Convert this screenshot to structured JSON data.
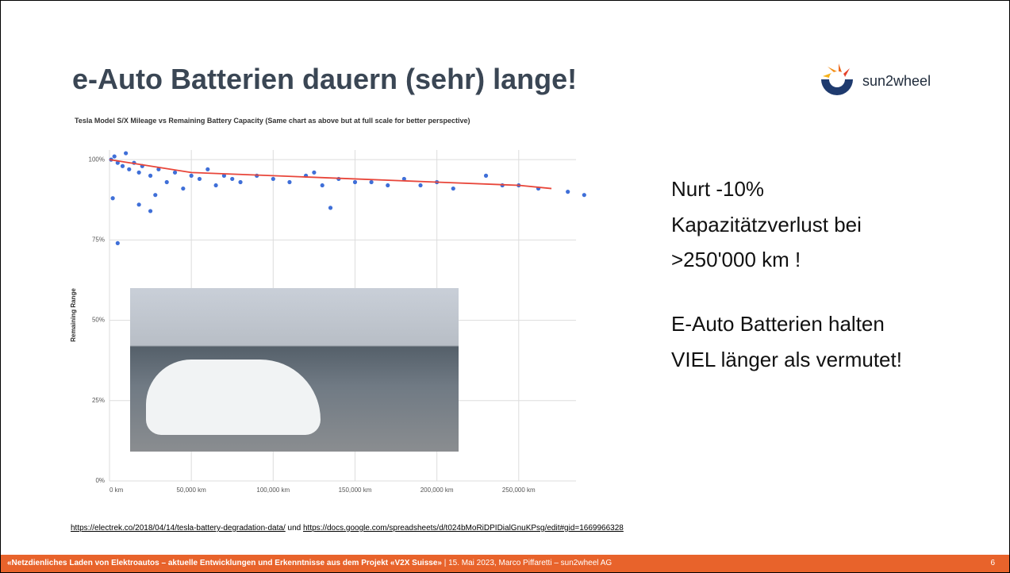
{
  "header": {
    "title": "e-Auto Batterien dauern (sehr) lange!",
    "logo_text": "sun2wheel"
  },
  "chart_data": {
    "type": "scatter",
    "title": "Tesla Model S/X Mileage vs Remaining Battery Capacity (Same chart as above but at full scale for better perspective)",
    "y_label": "Remaining Range",
    "xlim": [
      0,
      285000
    ],
    "ylim": [
      0,
      103
    ],
    "xticks": [
      {
        "value": 0,
        "label": "0 km"
      },
      {
        "value": 50000,
        "label": "50,000 km"
      },
      {
        "value": 100000,
        "label": "100,000 km"
      },
      {
        "value": 150000,
        "label": "150,000 km"
      },
      {
        "value": 200000,
        "label": "200,000 km"
      },
      {
        "value": 250000,
        "label": "250,000 km"
      }
    ],
    "yticks": [
      {
        "value": 0,
        "label": "0%"
      },
      {
        "value": 25,
        "label": "25%"
      },
      {
        "value": 50,
        "label": "50%"
      },
      {
        "value": 75,
        "label": "75%"
      },
      {
        "value": 100,
        "label": "100%"
      }
    ],
    "grid": true,
    "series": [
      {
        "type": "scatter",
        "color": "#3f6fd8",
        "x": [
          1000,
          3000,
          5000,
          8000,
          10000,
          12000,
          15000,
          18000,
          20000,
          25000,
          28000,
          30000,
          35000,
          40000,
          45000,
          50000,
          55000,
          60000,
          65000,
          70000,
          75000,
          80000,
          90000,
          100000,
          110000,
          120000,
          125000,
          130000,
          140000,
          150000,
          160000,
          170000,
          180000,
          190000,
          200000,
          210000,
          230000,
          240000,
          250000,
          262000,
          280000,
          290000,
          5000,
          2000,
          135000,
          18000,
          25000
        ],
        "y": [
          100,
          101,
          99,
          98,
          102,
          97,
          99,
          96,
          98,
          95,
          89,
          97,
          93,
          96,
          91,
          95,
          94,
          97,
          92,
          95,
          94,
          93,
          95,
          94,
          93,
          95,
          96,
          92,
          94,
          93,
          93,
          92,
          94,
          92,
          93,
          91,
          95,
          92,
          92,
          91,
          90,
          89,
          74,
          88,
          85,
          86,
          84
        ]
      },
      {
        "type": "line",
        "color": "#e8463a",
        "x": [
          0,
          50000,
          100000,
          150000,
          200000,
          250000,
          270000
        ],
        "y": [
          100,
          96,
          95,
          94,
          93,
          92,
          91
        ]
      }
    ]
  },
  "text": {
    "lines": [
      "Nurt -10%",
      "Kapazitätzverlust bei",
      ">250'000 km !",
      "E-Auto Batterien halten",
      "VIEL länger als vermutet!"
    ]
  },
  "sources": {
    "link1": "https://electrek.co/2018/04/14/tesla-battery-degradation-data/",
    "joiner": "und",
    "link2": "https://docs.google.com/spreadsheets/d/t024bMoRiDPIDialGnuKPsg/edit#gid=1669966328"
  },
  "footer": {
    "title": "«Netzdienliches Laden von Elektroautos – aktuelle Entwicklungen und Erkenntnisse aus dem Projekt «V2X Suisse»",
    "info": "| 15. Mai 2023, Marco Piffaretti – sun2wheel AG",
    "page": "6"
  }
}
